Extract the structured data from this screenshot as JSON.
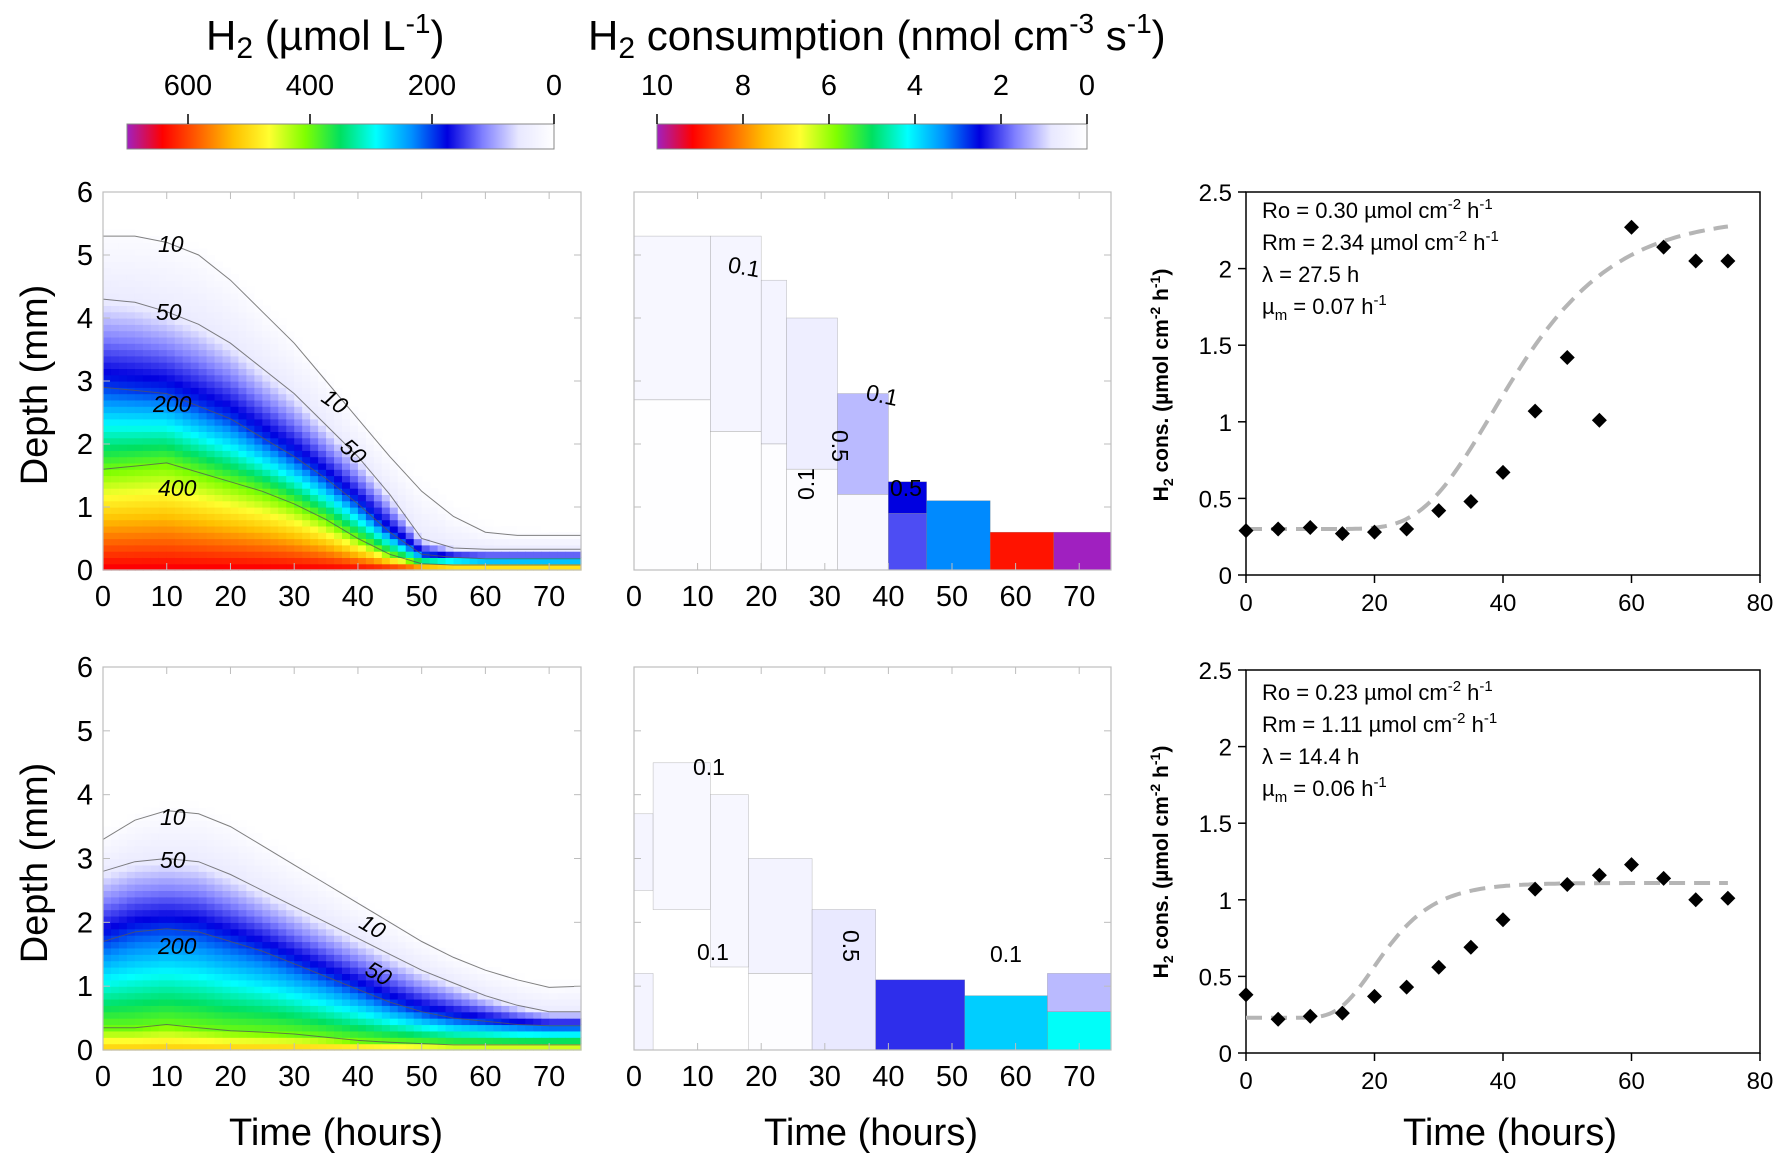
{
  "colorbars": {
    "h2": {
      "title_main": "H",
      "title_sub": "2",
      "title_rest": " (µmol L",
      "title_sup": "-1",
      "title_end": ")",
      "ticks": [
        "600",
        "400",
        "200",
        "0"
      ],
      "tick_values": [
        600,
        400,
        200,
        0
      ],
      "range": [
        700,
        0
      ]
    },
    "cons": {
      "title_main": "H",
      "title_sub": "2",
      "title_rest": " consumption (nmol cm",
      "title_sup": "-3",
      "title_mid": " s",
      "title_sup2": "-1",
      "title_end": ")",
      "ticks": [
        "10",
        "8",
        "6",
        "4",
        "2",
        "0"
      ],
      "tick_values": [
        10,
        8,
        6,
        4,
        2,
        0
      ],
      "range": [
        10,
        0
      ]
    },
    "colors": [
      "#a020c0",
      "#ff0000",
      "#ff6000",
      "#ffc000",
      "#ffff30",
      "#80ff00",
      "#00e060",
      "#00ffff",
      "#0090ff",
      "#0000e0",
      "#8080ff",
      "#e8e8ff",
      "#ffffff"
    ]
  },
  "axes": {
    "depth_label": "Depth (mm)",
    "time_label": "Time  (hours)",
    "rate_label_main": "H",
    "rate_label_sub": "2",
    "rate_label_rest": " cons. (µmol cm",
    "rate_label_sup": "-2",
    "rate_label_mid": " h",
    "rate_label_sup2": "-1",
    "rate_label_end": ")",
    "depth_ticks": [
      "0",
      "1",
      "2",
      "3",
      "4",
      "5",
      "6"
    ],
    "time_ticks": [
      "0",
      "10",
      "20",
      "30",
      "40",
      "50",
      "60",
      "70"
    ],
    "rate_ticks": [
      "0",
      "0.5",
      "1",
      "1.5",
      "2",
      "2.5"
    ],
    "rate_time_ticks": [
      "0",
      "20",
      "40",
      "60",
      "80"
    ]
  },
  "contour_labels": {
    "top_h2": [
      "10",
      "50",
      "200",
      "400",
      "10",
      "50"
    ],
    "top_cons": [
      "0.1",
      "0.1",
      "0.5",
      "0.1",
      "0.5"
    ],
    "bottom_h2": [
      "10",
      "50",
      "200",
      "10",
      "50"
    ],
    "bottom_cons": [
      "0.1",
      "0.1",
      "0.5",
      "0.1"
    ]
  },
  "annotations": {
    "top": {
      "ro_pre": "Ro = 0.30 µmol cm",
      "ro_sup": "-2",
      "ro_mid": " h",
      "ro_sup2": "-1",
      "rm_pre": "Rm = 2.34 µmol cm",
      "rm_sup": "-2",
      "rm_mid": " h",
      "rm_sup2": "-1",
      "lambda": "λ = 27.5 h",
      "mu_pre": "µ",
      "mu_sub": "m",
      "mu_mid": " = 0.07 h",
      "mu_sup": "-1"
    },
    "bottom": {
      "ro_pre": "Ro = 0.23 µmol cm",
      "ro_sup": "-2",
      "ro_mid": " h",
      "ro_sup2": "-1",
      "rm_pre": "Rm = 1.11 µmol cm",
      "rm_sup": "-2",
      "rm_mid": " h",
      "rm_sup2": "-1",
      "lambda": "λ = 14.4 h",
      "mu_pre": "µ",
      "mu_sub": "m",
      "mu_mid": " = 0.06 h",
      "mu_sup": "-1"
    }
  },
  "chart_data": [
    {
      "type": "heatmap",
      "panel": "top-left",
      "title": "H2 (µmol L-1)",
      "xlabel": "Time  (hours)",
      "ylabel": "Depth (mm)",
      "xlim": [
        0,
        75
      ],
      "ylim": [
        0,
        6
      ],
      "zmax": 700,
      "surface_depth": [
        5.4,
        5.4,
        5.3,
        5.2,
        4.8,
        4.3,
        3.8,
        3.2,
        2.6,
        2.0,
        1.5,
        1.1,
        0.8,
        0.7,
        0.65,
        0.6
      ],
      "isoline_times": [
        0,
        5,
        10,
        15,
        20,
        25,
        30,
        35,
        40,
        45,
        50,
        55,
        60,
        65,
        70,
        75
      ],
      "isolines": {
        "10": [
          5.3,
          5.3,
          5.2,
          5.0,
          4.6,
          4.1,
          3.6,
          3.0,
          2.4,
          1.8,
          1.25,
          0.85,
          0.6,
          0.55,
          0.55,
          0.55
        ],
        "50": [
          4.3,
          4.25,
          4.1,
          3.9,
          3.6,
          3.2,
          2.8,
          2.3,
          1.8,
          1.2,
          0.5,
          0.35,
          0.33,
          0.33,
          0.33,
          0.33
        ],
        "200": [
          2.9,
          2.85,
          2.8,
          2.6,
          2.4,
          2.1,
          1.8,
          1.45,
          1.05,
          0.6,
          0.25,
          0.2,
          0.18,
          0.18,
          0.18,
          0.18
        ],
        "400": [
          1.6,
          1.65,
          1.7,
          1.55,
          1.4,
          1.25,
          1.05,
          0.8,
          0.5,
          0.25,
          0.1,
          0.08,
          0.08,
          0.08,
          0.08,
          0.08
        ]
      },
      "max_value": 650
    },
    {
      "type": "heatmap",
      "panel": "top-middle",
      "title": "H2 consumption (nmol cm-3 s-1)",
      "xlabel": "Time  (hours)",
      "ylabel": "",
      "xlim": [
        0,
        75
      ],
      "ylim": [
        0,
        6
      ],
      "zmax": 10,
      "cells": [
        [
          0,
          12,
          2.7,
          5.3,
          0.3
        ],
        [
          0,
          12,
          0,
          2.7,
          0.05
        ],
        [
          12,
          20,
          2.2,
          5.3,
          0.35
        ],
        [
          12,
          20,
          0,
          2.2,
          0.05
        ],
        [
          20,
          24,
          2.0,
          4.6,
          0.4
        ],
        [
          20,
          24,
          0,
          2.0,
          0.08
        ],
        [
          24,
          32,
          1.6,
          4.0,
          0.6
        ],
        [
          24,
          32,
          0,
          1.6,
          0.12
        ],
        [
          32,
          40,
          1.2,
          2.8,
          1.2
        ],
        [
          32,
          40,
          0,
          1.2,
          0.2
        ],
        [
          40,
          46,
          0.9,
          1.4,
          2.5
        ],
        [
          40,
          46,
          0,
          0.9,
          2.0
        ],
        [
          46,
          56,
          0,
          1.1,
          3.3
        ],
        [
          56,
          66,
          0,
          0.6,
          9.0
        ],
        [
          66,
          75,
          0,
          0.6,
          10.0
        ]
      ]
    },
    {
      "type": "scatter",
      "panel": "top-right",
      "xlabel": "Time  (hours)",
      "ylabel": "H2 cons. (µmol cm-2 h-1)",
      "xlim": [
        0,
        80
      ],
      "ylim": [
        0,
        2.5
      ],
      "x": [
        0,
        5,
        10,
        15,
        20,
        25,
        30,
        35,
        40,
        45,
        50,
        55,
        60,
        65,
        70,
        75
      ],
      "y": [
        0.29,
        0.3,
        0.31,
        0.27,
        0.28,
        0.3,
        0.42,
        0.48,
        0.67,
        1.07,
        1.42,
        1.01,
        2.27,
        2.14,
        2.05,
        2.05
      ],
      "fit": {
        "name": "Gompertz fit",
        "Ro": 0.3,
        "Rm": 2.34,
        "lambda": 27.5,
        "mu": 0.07
      }
    },
    {
      "type": "heatmap",
      "panel": "bottom-left",
      "title": "H2 (µmol L-1)",
      "xlabel": "Time  (hours)",
      "ylabel": "Depth (mm)",
      "xlim": [
        0,
        75
      ],
      "ylim": [
        0,
        6
      ],
      "zmax": 700,
      "surface_depth": [
        3.5,
        3.7,
        3.9,
        3.9,
        3.7,
        3.4,
        3.1,
        2.8,
        2.4,
        2.1,
        1.8,
        1.55,
        1.35,
        1.2,
        1.1,
        1.1
      ],
      "isoline_times": [
        0,
        5,
        10,
        15,
        20,
        25,
        30,
        35,
        40,
        45,
        50,
        55,
        60,
        65,
        70,
        75
      ],
      "isolines": {
        "10": [
          3.3,
          3.6,
          3.75,
          3.7,
          3.5,
          3.2,
          2.9,
          2.6,
          2.3,
          2.0,
          1.7,
          1.45,
          1.25,
          1.1,
          0.98,
          1.0
        ],
        "50": [
          2.8,
          2.95,
          3.0,
          2.95,
          2.75,
          2.5,
          2.25,
          2.0,
          1.75,
          1.5,
          1.25,
          1.05,
          0.85,
          0.7,
          0.6,
          0.6
        ],
        "200": [
          1.7,
          1.85,
          1.9,
          1.85,
          1.7,
          1.55,
          1.35,
          1.15,
          0.95,
          0.75,
          0.6,
          0.5,
          0.45,
          0.4,
          0.38,
          0.38
        ],
        "400": [
          0.35,
          0.35,
          0.4,
          0.35,
          0.3,
          0.28,
          0.25,
          0.2,
          0.15,
          0.12,
          0.1,
          0.08,
          0.08,
          0.08,
          0.08,
          0.08
        ]
      },
      "max_value": 520
    },
    {
      "type": "heatmap",
      "panel": "bottom-middle",
      "title": "H2 consumption (nmol cm-3 s-1)",
      "xlabel": "Time  (hours)",
      "ylabel": "",
      "xlim": [
        0,
        75
      ],
      "ylim": [
        0,
        6
      ],
      "zmax": 10,
      "cells": [
        [
          0,
          3,
          0,
          1.2,
          0.4
        ],
        [
          0,
          3,
          2.5,
          3.7,
          0.35
        ],
        [
          3,
          12,
          2.2,
          4.5,
          0.25
        ],
        [
          12,
          18,
          1.3,
          4.0,
          0.3
        ],
        [
          18,
          28,
          1.2,
          3.0,
          0.45
        ],
        [
          18,
          28,
          0,
          1.2,
          0.08
        ],
        [
          28,
          38,
          0,
          2.2,
          0.8
        ],
        [
          38,
          52,
          0,
          1.1,
          2.2
        ],
        [
          52,
          65,
          0,
          0.85,
          3.8
        ],
        [
          65,
          75,
          0,
          0.6,
          4.2
        ],
        [
          65,
          75,
          0.6,
          1.2,
          1.2
        ]
      ]
    },
    {
      "type": "scatter",
      "panel": "bottom-right",
      "xlabel": "Time  (hours)",
      "ylabel": "H2 cons. (µmol cm-2 h-1)",
      "xlim": [
        0,
        80
      ],
      "ylim": [
        0,
        2.5
      ],
      "x": [
        0,
        5,
        10,
        15,
        20,
        25,
        30,
        35,
        40,
        45,
        50,
        55,
        60,
        65,
        70,
        75
      ],
      "y": [
        0.38,
        0.22,
        0.24,
        0.26,
        0.37,
        0.43,
        0.56,
        0.69,
        0.87,
        1.07,
        1.1,
        1.16,
        1.23,
        1.14,
        1.0,
        1.01
      ],
      "fit": {
        "name": "Gompertz fit",
        "Ro": 0.23,
        "Rm": 1.11,
        "lambda": 14.4,
        "mu": 0.06
      }
    }
  ]
}
